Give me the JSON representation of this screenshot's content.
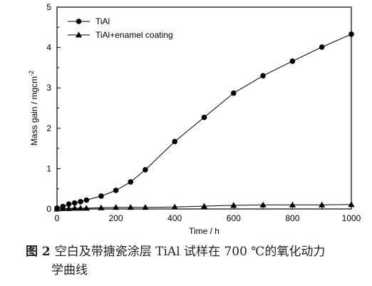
{
  "chart_data": {
    "type": "line",
    "xlabel": "Time / h",
    "ylabel": "Mass gain / mgcm",
    "ylabel_sup": "-2",
    "xlim": [
      0,
      1000
    ],
    "ylim": [
      0,
      5
    ],
    "xticks": [
      0,
      200,
      400,
      600,
      800,
      1000
    ],
    "yticks": [
      0,
      1,
      2,
      3,
      4,
      5
    ],
    "legend_position": "top-left",
    "series": [
      {
        "name": "TiAl",
        "marker": "circle",
        "color": "#000000",
        "x": [
          0,
          20,
          40,
          60,
          80,
          100,
          150,
          200,
          250,
          300,
          400,
          500,
          600,
          700,
          800,
          900,
          1000
        ],
        "y": [
          0.02,
          0.06,
          0.12,
          0.15,
          0.18,
          0.22,
          0.32,
          0.46,
          0.67,
          0.97,
          1.67,
          2.27,
          2.87,
          3.3,
          3.66,
          4.01,
          4.33
        ]
      },
      {
        "name": "TiAl+enamel coating",
        "marker": "triangle",
        "color": "#000000",
        "x": [
          0,
          20,
          40,
          60,
          80,
          100,
          150,
          200,
          250,
          300,
          400,
          500,
          600,
          700,
          800,
          900,
          1000
        ],
        "y": [
          0.0,
          0.01,
          0.01,
          0.02,
          0.02,
          0.02,
          0.03,
          0.04,
          0.04,
          0.04,
          0.05,
          0.07,
          0.09,
          0.1,
          0.1,
          0.1,
          0.11
        ]
      }
    ]
  },
  "caption": {
    "label": "图 2",
    "text_line1": "空白及带搪瓷涂层 TiAl 试样在 700 ℃的氧化动力",
    "text_line2": "学曲线"
  }
}
